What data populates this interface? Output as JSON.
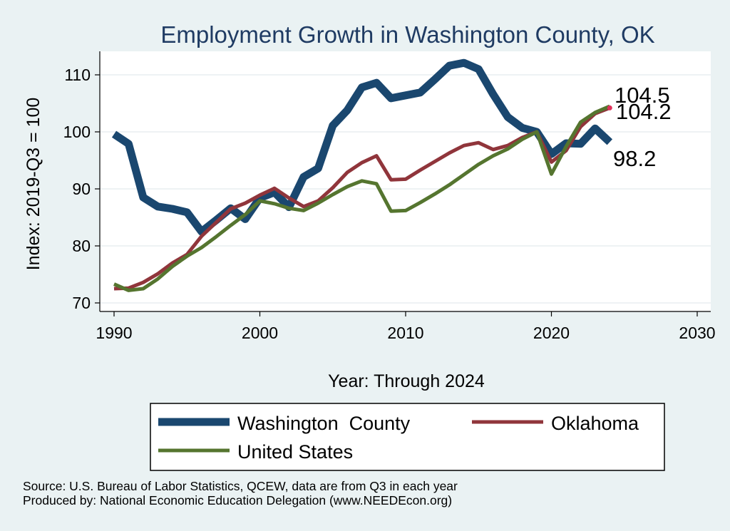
{
  "chart_data": {
    "type": "line",
    "title": "Employment Growth in Washington County, OK",
    "xlabel": "Year: Through 2024",
    "ylabel": "Index: 2019-Q3 = 100",
    "xlim": [
      1990,
      2030
    ],
    "ylim": [
      68,
      113
    ],
    "xticks": [
      1990,
      2000,
      2010,
      2020,
      2030
    ],
    "yticks": [
      70,
      80,
      90,
      100,
      110
    ],
    "grid": true,
    "legend_position": "bottom",
    "x": [
      1990,
      1991,
      1992,
      1993,
      1994,
      1995,
      1996,
      1997,
      1998,
      1999,
      2000,
      2001,
      2002,
      2003,
      2004,
      2005,
      2006,
      2007,
      2008,
      2009,
      2010,
      2011,
      2012,
      2013,
      2014,
      2015,
      2016,
      2017,
      2018,
      2019,
      2020,
      2021,
      2022,
      2023,
      2024
    ],
    "series": [
      {
        "name": "Washington  County",
        "color": "#1a476f",
        "values": [
          99.6,
          97.9,
          88.5,
          86.9,
          86.5,
          85.9,
          82.5,
          84.5,
          86.6,
          84.7,
          88.4,
          89.4,
          86.8,
          92.1,
          93.6,
          101.1,
          103.8,
          107.8,
          108.6,
          105.9,
          106.4,
          106.9,
          109.2,
          111.6,
          112.1,
          111.0,
          106.6,
          102.6,
          100.7,
          100.0,
          96.1,
          98.0,
          97.9,
          100.6,
          98.2
        ]
      },
      {
        "name": "Oklahoma",
        "color": "#90353b",
        "values": [
          72.5,
          72.6,
          73.6,
          75.1,
          77.0,
          78.5,
          81.7,
          84.1,
          86.5,
          87.5,
          88.9,
          90.1,
          88.4,
          86.9,
          87.9,
          90.2,
          92.9,
          94.6,
          95.8,
          91.6,
          91.7,
          93.3,
          94.8,
          96.3,
          97.6,
          98.1,
          96.9,
          97.6,
          99.0,
          100.0,
          94.7,
          96.7,
          100.9,
          103.2,
          104.2
        ]
      },
      {
        "name": "United States",
        "color": "#55752f",
        "values": [
          73.3,
          72.2,
          72.5,
          74.2,
          76.4,
          78.2,
          79.7,
          81.6,
          83.6,
          85.5,
          87.9,
          87.4,
          86.6,
          86.2,
          87.5,
          89.0,
          90.4,
          91.4,
          90.9,
          86.1,
          86.2,
          87.6,
          89.1,
          90.7,
          92.5,
          94.3,
          95.8,
          97.0,
          98.7,
          100.0,
          92.6,
          97.4,
          101.7,
          103.4,
          104.5
        ]
      }
    ],
    "end_labels": [
      {
        "series": "United States",
        "text": "104.5"
      },
      {
        "series": "Oklahoma",
        "text": "104.2"
      },
      {
        "series": "Washington  County",
        "text": "98.2"
      }
    ]
  },
  "footer": {
    "source": "Source: U.S. Bureau of Labor Statistics, QCEW, data are from Q3 in each year",
    "produced_by": "Produced by: National Economic Education Delegation (www.NEEDEcon.org)"
  }
}
